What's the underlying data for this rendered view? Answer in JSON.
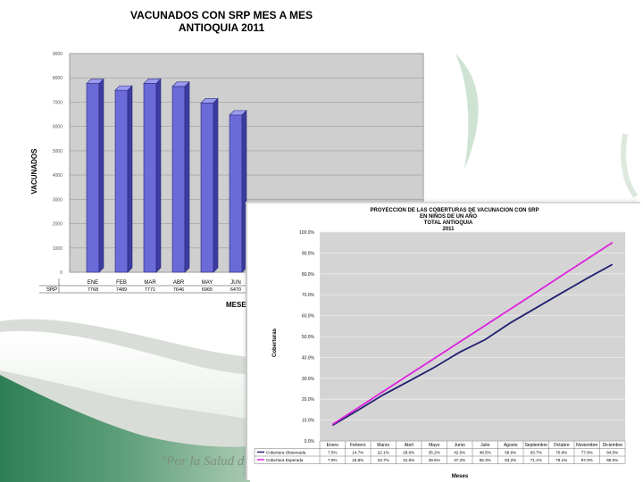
{
  "slogan": "\"Por la Salud d",
  "chart_data": [
    {
      "type": "bar",
      "title": "VACUNADOS CON SRP MES A MES",
      "subtitle": "ANTIOQUIA 2011",
      "xlabel": "MESES",
      "ylabel": "VACUNADOS",
      "categories": [
        "ENE",
        "FEB",
        "MAR",
        "ABR",
        "MAY",
        "JUN"
      ],
      "table_row_label": "SRP",
      "values_text": [
        "7768",
        "7489",
        "7771",
        "7646",
        "6965",
        "6470"
      ],
      "series": [
        {
          "name": "SRP",
          "values": [
            7768,
            7489,
            7771,
            7646,
            6965,
            6470
          ]
        }
      ],
      "ylim": [
        0,
        9000
      ],
      "yticks": [
        "0",
        "1000",
        "2000",
        "3000",
        "4000",
        "5000",
        "6000",
        "7000",
        "8000",
        "9000"
      ],
      "bar_color": "#6a6ad8",
      "grid": true
    },
    {
      "type": "line",
      "title": "PROYECCION DE LAS COBERTURAS  DE VACUNACION  CON SRP",
      "subtitle_lines": [
        "EN NIÑOS DE UN AÑO",
        "TOTAL ANTIOQUIA",
        "2011"
      ],
      "xlabel": "Meses",
      "ylabel": "Coberturas",
      "categories": [
        "Enero",
        "Febrero",
        "Marzo",
        "Abril",
        "Mayo",
        "Junio",
        "Julio",
        "Agosto",
        "Septiembre",
        "Octubre",
        "Noviembre",
        "Diciembre"
      ],
      "ylim": [
        0,
        100
      ],
      "yticks": [
        "0.0%",
        "10.0%",
        "20.0%",
        "30.0%",
        "40.0%",
        "50.0%",
        "60.0%",
        "70.0%",
        "80.0%",
        "90.0%",
        "100.0%"
      ],
      "series": [
        {
          "name": "Cobertura Observada",
          "color": "#1f1f6f",
          "values": [
            7.5,
            14.7,
            22.1,
            28.6,
            35.2,
            42.5,
            48.5,
            56.6,
            63.7,
            70.8,
            77.8,
            84.5
          ],
          "values_text": [
            "7.5%",
            "14.7%",
            "22.1%",
            "28.6%",
            "35.2%",
            "42.5%",
            "48.5%",
            "56.6%",
            "63.7%",
            "70.8%",
            "77.8%",
            "84.5%"
          ]
        },
        {
          "name": "Cobertura Esperada",
          "color": "#dd22dd",
          "values": [
            7.9,
            15.8,
            23.7,
            31.6,
            39.5,
            47.4,
            55.3,
            63.2,
            71.1,
            79.1,
            87.0,
            95.0
          ],
          "values_text": [
            "7.9%",
            "15.8%",
            "23.7%",
            "31.6%",
            "39.5%",
            "47.4%",
            "55.3%",
            "63.2%",
            "71.1%",
            "79.1%",
            "87.0%",
            "95.0%"
          ]
        }
      ],
      "plot_background": "#d4d4d4",
      "grid": true
    }
  ]
}
